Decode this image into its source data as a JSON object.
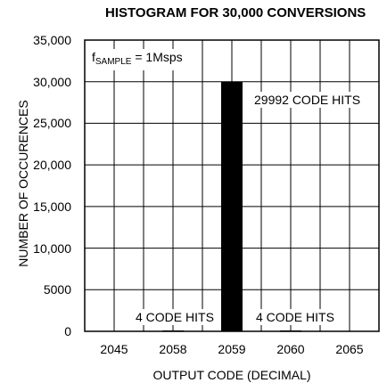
{
  "chart_data": {
    "type": "bar",
    "title": "HISTOGRAM FOR 30,000 CONVERSIONS",
    "xlabel": "OUTPUT CODE (DECIMAL)",
    "ylabel": "NUMBER OF OCCURENCES",
    "categories": [
      "2058",
      "2059",
      "2060"
    ],
    "values": [
      4,
      29992,
      4
    ],
    "x_tick_labels": [
      "2045",
      "2058",
      "2059",
      "2060",
      "2065"
    ],
    "y_tick_labels": [
      "0",
      "5000",
      "10,000",
      "15,000",
      "20,000",
      "25,000",
      "30,000",
      "35,000"
    ],
    "ylim": [
      0,
      35000
    ],
    "grid": true,
    "bar_color": "#000000",
    "annotations": {
      "sample_symbol": "f",
      "sample_sub": "SAMPLE",
      "sample_value": " = 1Msps",
      "center_hits": "29992 CODE HITS",
      "left_hits": "4 CODE HITS",
      "right_hits": "4 CODE HITS"
    }
  }
}
